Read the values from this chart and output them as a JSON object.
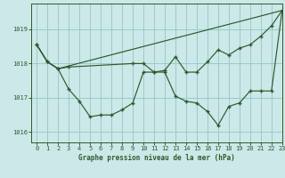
{
  "title": "Graphe pression niveau de la mer (hPa)",
  "background_color": "#cce8e8",
  "line_color": "#2d5a2d",
  "grid_color": "#99cccc",
  "xlim": [
    -0.5,
    23
  ],
  "ylim": [
    1015.7,
    1019.75
  ],
  "yticks": [
    1016,
    1017,
    1018,
    1019
  ],
  "xticks": [
    0,
    1,
    2,
    3,
    4,
    5,
    6,
    7,
    8,
    9,
    10,
    11,
    12,
    13,
    14,
    15,
    16,
    17,
    18,
    19,
    20,
    21,
    22,
    23
  ],
  "series1_x": [
    0,
    1,
    2,
    3,
    4,
    5,
    6,
    7,
    8,
    9,
    10,
    11,
    12,
    13,
    14,
    15,
    16,
    17,
    18,
    19,
    20,
    21,
    22,
    23
  ],
  "series1_y": [
    1018.55,
    1018.05,
    1017.85,
    1017.25,
    1016.9,
    1016.45,
    1016.5,
    1016.5,
    1016.65,
    1016.85,
    1017.75,
    1017.75,
    1017.75,
    1017.05,
    1016.9,
    1016.85,
    1016.6,
    1016.2,
    1016.75,
    1016.85,
    1017.2,
    1017.2,
    1017.2,
    1019.55
  ],
  "series2_x": [
    0,
    1,
    2,
    3,
    9,
    10,
    11,
    12,
    13,
    14,
    15,
    16,
    17,
    18,
    19,
    20,
    21,
    22,
    23
  ],
  "series2_y": [
    1018.55,
    1018.05,
    1017.85,
    1017.9,
    1018.0,
    1018.0,
    1017.75,
    1017.8,
    1018.2,
    1017.75,
    1017.75,
    1018.05,
    1018.4,
    1018.25,
    1018.45,
    1018.55,
    1018.8,
    1019.1,
    1019.55
  ],
  "series3_x": [
    0,
    1,
    2,
    23
  ],
  "series3_y": [
    1018.55,
    1018.05,
    1017.85,
    1019.55
  ]
}
